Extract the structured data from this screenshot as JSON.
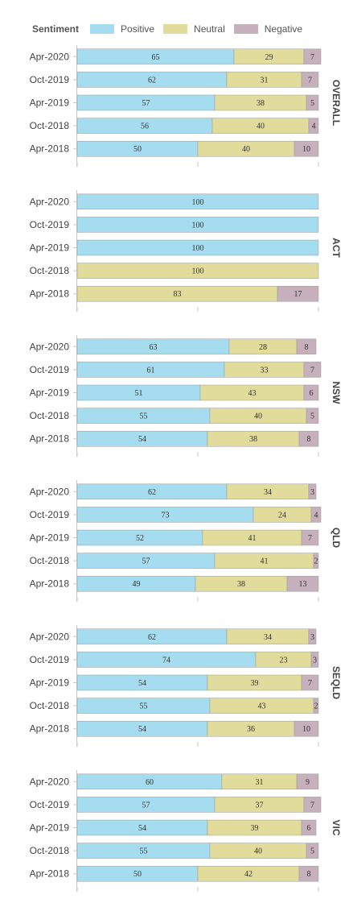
{
  "legend": {
    "title": "Sentiment",
    "items": [
      {
        "label": "Positive",
        "color": "#a6dcf0"
      },
      {
        "label": "Neutral",
        "color": "#e2dc9c"
      },
      {
        "label": "Negative",
        "color": "#c5b0bc"
      }
    ]
  },
  "chart_data": {
    "type": "bar",
    "orientation": "horizontal",
    "stacked": true,
    "xlim": [
      0,
      100
    ],
    "legend_position": "top-left",
    "series_names": [
      "Positive",
      "Neutral",
      "Negative"
    ],
    "colors": [
      "#a6dcf0",
      "#e2dc9c",
      "#c5b0bc"
    ],
    "panels": [
      {
        "title": "OVERALL",
        "categories": [
          "Apr-2020",
          "Oct-2019",
          "Apr-2019",
          "Oct-2018",
          "Apr-2018"
        ],
        "values": [
          [
            65,
            29,
            7
          ],
          [
            62,
            31,
            7
          ],
          [
            57,
            38,
            5
          ],
          [
            56,
            40,
            4
          ],
          [
            50,
            40,
            10
          ]
        ]
      },
      {
        "title": "ACT",
        "categories": [
          "Apr-2020",
          "Oct-2019",
          "Apr-2019",
          "Oct-2018",
          "Apr-2018"
        ],
        "values": [
          [
            100,
            0,
            0
          ],
          [
            100,
            0,
            0
          ],
          [
            100,
            0,
            0
          ],
          [
            0,
            100,
            0
          ],
          [
            0,
            83,
            17
          ]
        ]
      },
      {
        "title": "NSW",
        "categories": [
          "Apr-2020",
          "Oct-2019",
          "Apr-2019",
          "Oct-2018",
          "Apr-2018"
        ],
        "values": [
          [
            63,
            28,
            8
          ],
          [
            61,
            33,
            7
          ],
          [
            51,
            43,
            6
          ],
          [
            55,
            40,
            5
          ],
          [
            54,
            38,
            8
          ]
        ]
      },
      {
        "title": "QLD",
        "categories": [
          "Apr-2020",
          "Oct-2019",
          "Apr-2019",
          "Oct-2018",
          "Apr-2018"
        ],
        "values": [
          [
            62,
            34,
            3
          ],
          [
            73,
            24,
            4
          ],
          [
            52,
            41,
            7
          ],
          [
            57,
            41,
            2
          ],
          [
            49,
            38,
            13
          ]
        ]
      },
      {
        "title": "SEQLD",
        "categories": [
          "Apr-2020",
          "Oct-2019",
          "Apr-2019",
          "Oct-2018",
          "Apr-2018"
        ],
        "values": [
          [
            62,
            34,
            3
          ],
          [
            74,
            23,
            3
          ],
          [
            54,
            39,
            7
          ],
          [
            55,
            43,
            2
          ],
          [
            54,
            36,
            10
          ]
        ]
      },
      {
        "title": "VIC",
        "categories": [
          "Apr-2020",
          "Oct-2019",
          "Apr-2019",
          "Oct-2018",
          "Apr-2018"
        ],
        "values": [
          [
            60,
            31,
            9
          ],
          [
            57,
            37,
            7
          ],
          [
            54,
            39,
            6
          ],
          [
            55,
            40,
            5
          ],
          [
            50,
            42,
            8
          ]
        ]
      }
    ]
  }
}
